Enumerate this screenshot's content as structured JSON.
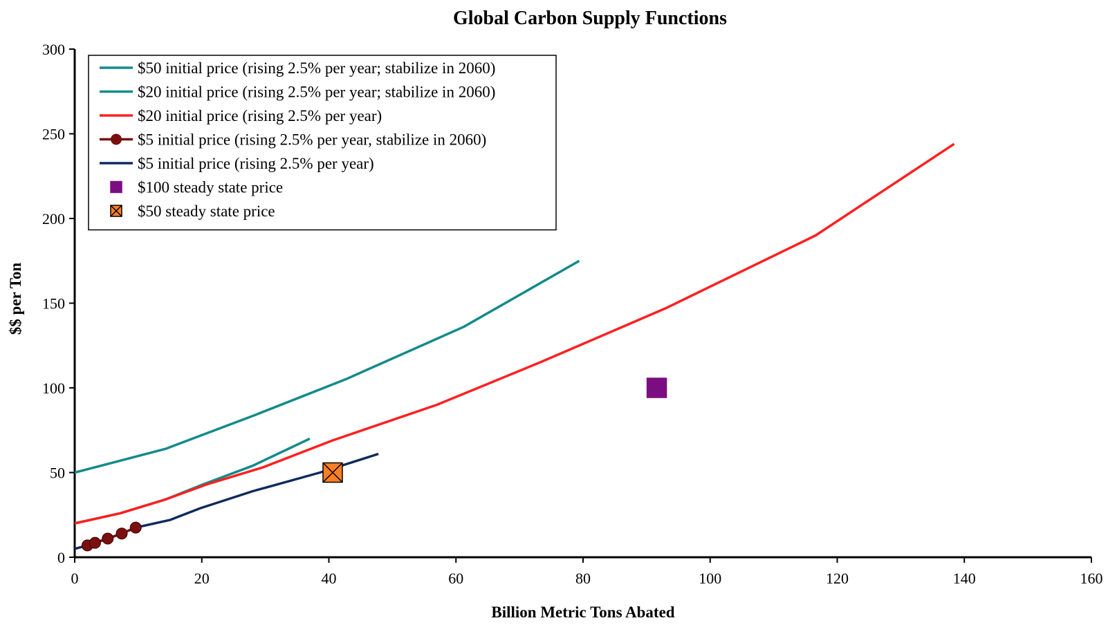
{
  "chart_data": {
    "type": "line",
    "title": "Global Carbon Supply Functions",
    "xlabel": "Billion Metric Tons Abated",
    "ylabel": "$$ per Ton",
    "xlim": [
      0,
      160
    ],
    "ylim": [
      0,
      300
    ],
    "xticks": [
      0,
      20,
      40,
      60,
      80,
      100,
      120,
      140,
      160
    ],
    "yticks": [
      0,
      50,
      100,
      150,
      200,
      250,
      300
    ],
    "grid": false,
    "legend_position": "top-left",
    "series": [
      {
        "name": "$50 initial price (rising 2.5% per year; stabilize in 2060)",
        "color": "#138a8a",
        "marker": "none",
        "points": [
          [
            0,
            50
          ],
          [
            14.3,
            64
          ],
          [
            28.4,
            84
          ],
          [
            42.6,
            105
          ],
          [
            61.2,
            136
          ],
          [
            79.4,
            175
          ]
        ]
      },
      {
        "name": "$20 initial price (rising 2.5% per year; stabilize in 2060)",
        "color": "#138a8a",
        "marker": "none",
        "points": [
          [
            0,
            20
          ],
          [
            7.2,
            26
          ],
          [
            14.2,
            34
          ],
          [
            20.2,
            43
          ],
          [
            28.0,
            54
          ],
          [
            37.0,
            70
          ]
        ]
      },
      {
        "name": "$20 initial price (rising 2.5% per year)",
        "color": "#ff1f1f",
        "marker": "none",
        "points": [
          [
            0,
            20
          ],
          [
            7.2,
            26
          ],
          [
            14.2,
            34
          ],
          [
            20.8,
            43
          ],
          [
            29.6,
            53
          ],
          [
            40.6,
            69
          ],
          [
            57.0,
            90
          ],
          [
            73.2,
            115
          ],
          [
            93.0,
            147
          ],
          [
            116.6,
            190
          ],
          [
            138.4,
            244
          ]
        ]
      },
      {
        "name": "$5 initial price (rising 2.5% per year, stabilize in 2060)",
        "color": "#7a0f0f",
        "marker": "circle",
        "points": [
          [
            2.0,
            7
          ],
          [
            3.2,
            8.5
          ],
          [
            5.2,
            11
          ],
          [
            7.4,
            14
          ],
          [
            9.6,
            17.5
          ]
        ]
      },
      {
        "name": "$5 initial price (rising 2.5% per year)",
        "color": "#0f2a5e",
        "marker": "none",
        "points": [
          [
            0,
            5
          ],
          [
            2.0,
            7
          ],
          [
            3.2,
            8.5
          ],
          [
            5.2,
            11
          ],
          [
            7.4,
            14
          ],
          [
            9.6,
            17.5
          ],
          [
            15.0,
            22
          ],
          [
            19.8,
            29
          ],
          [
            28.0,
            39
          ],
          [
            38.6,
            50
          ],
          [
            47.8,
            61
          ]
        ]
      }
    ],
    "points": [
      {
        "name": "$100 steady state price",
        "x": 91.6,
        "y": 100,
        "marker": "square",
        "color": "#7a0e80"
      },
      {
        "name": "$50 steady state price",
        "x": 40.6,
        "y": 50,
        "marker": "square-x",
        "color": "#ff7f27"
      }
    ]
  }
}
